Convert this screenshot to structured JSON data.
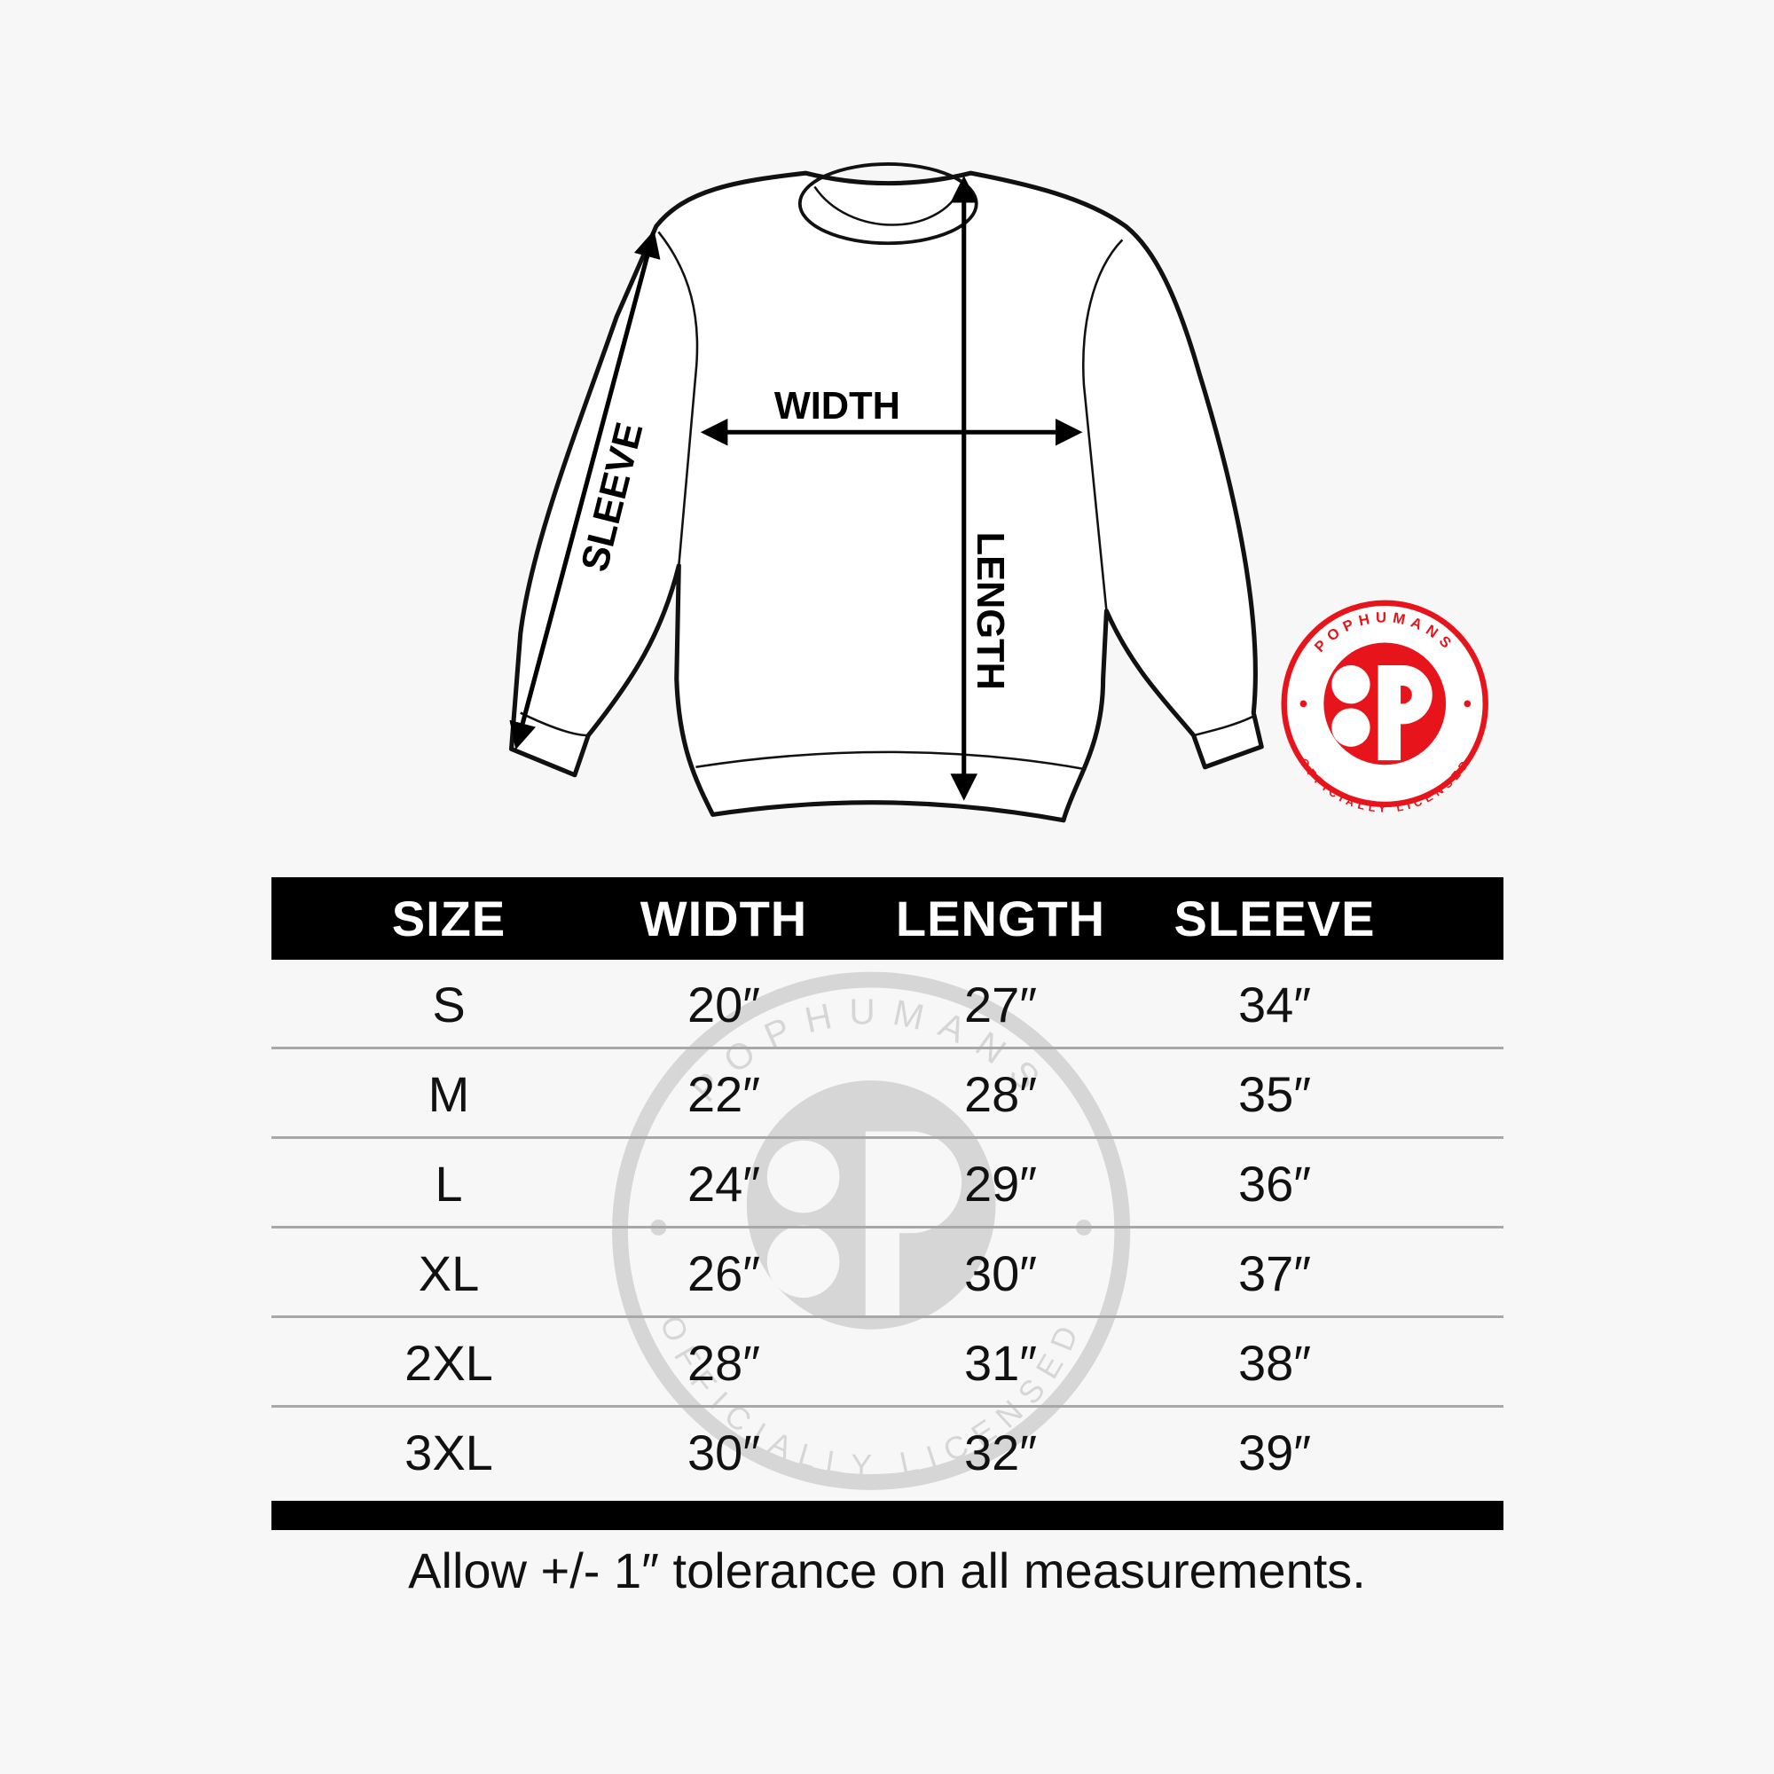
{
  "diagram": {
    "labels": {
      "width": "WIDTH",
      "length": "LENGTH",
      "sleeve": "SLEEVE"
    }
  },
  "logo": {
    "top_text": "POPHUMANS",
    "bottom_text": "OFFICIALLY LICENSED",
    "color": "#e8141b"
  },
  "watermark": {
    "top_text": "POPHUMANS",
    "bottom_text": "OFFICIALLY LICENSED"
  },
  "table": {
    "headers": [
      "SIZE",
      "WIDTH",
      "LENGTH",
      "SLEEVE"
    ],
    "rows": [
      [
        "S",
        "20″",
        "27″",
        "34″"
      ],
      [
        "M",
        "22″",
        "28″",
        "35″"
      ],
      [
        "L",
        "24″",
        "29″",
        "36″"
      ],
      [
        "XL",
        "26″",
        "30″",
        "37″"
      ],
      [
        "2XL",
        "28″",
        "31″",
        "38″"
      ],
      [
        "3XL",
        "30″",
        "32″",
        "39″"
      ]
    ]
  },
  "footer": {
    "note": "Allow +/- 1″ tolerance on all measurements."
  }
}
